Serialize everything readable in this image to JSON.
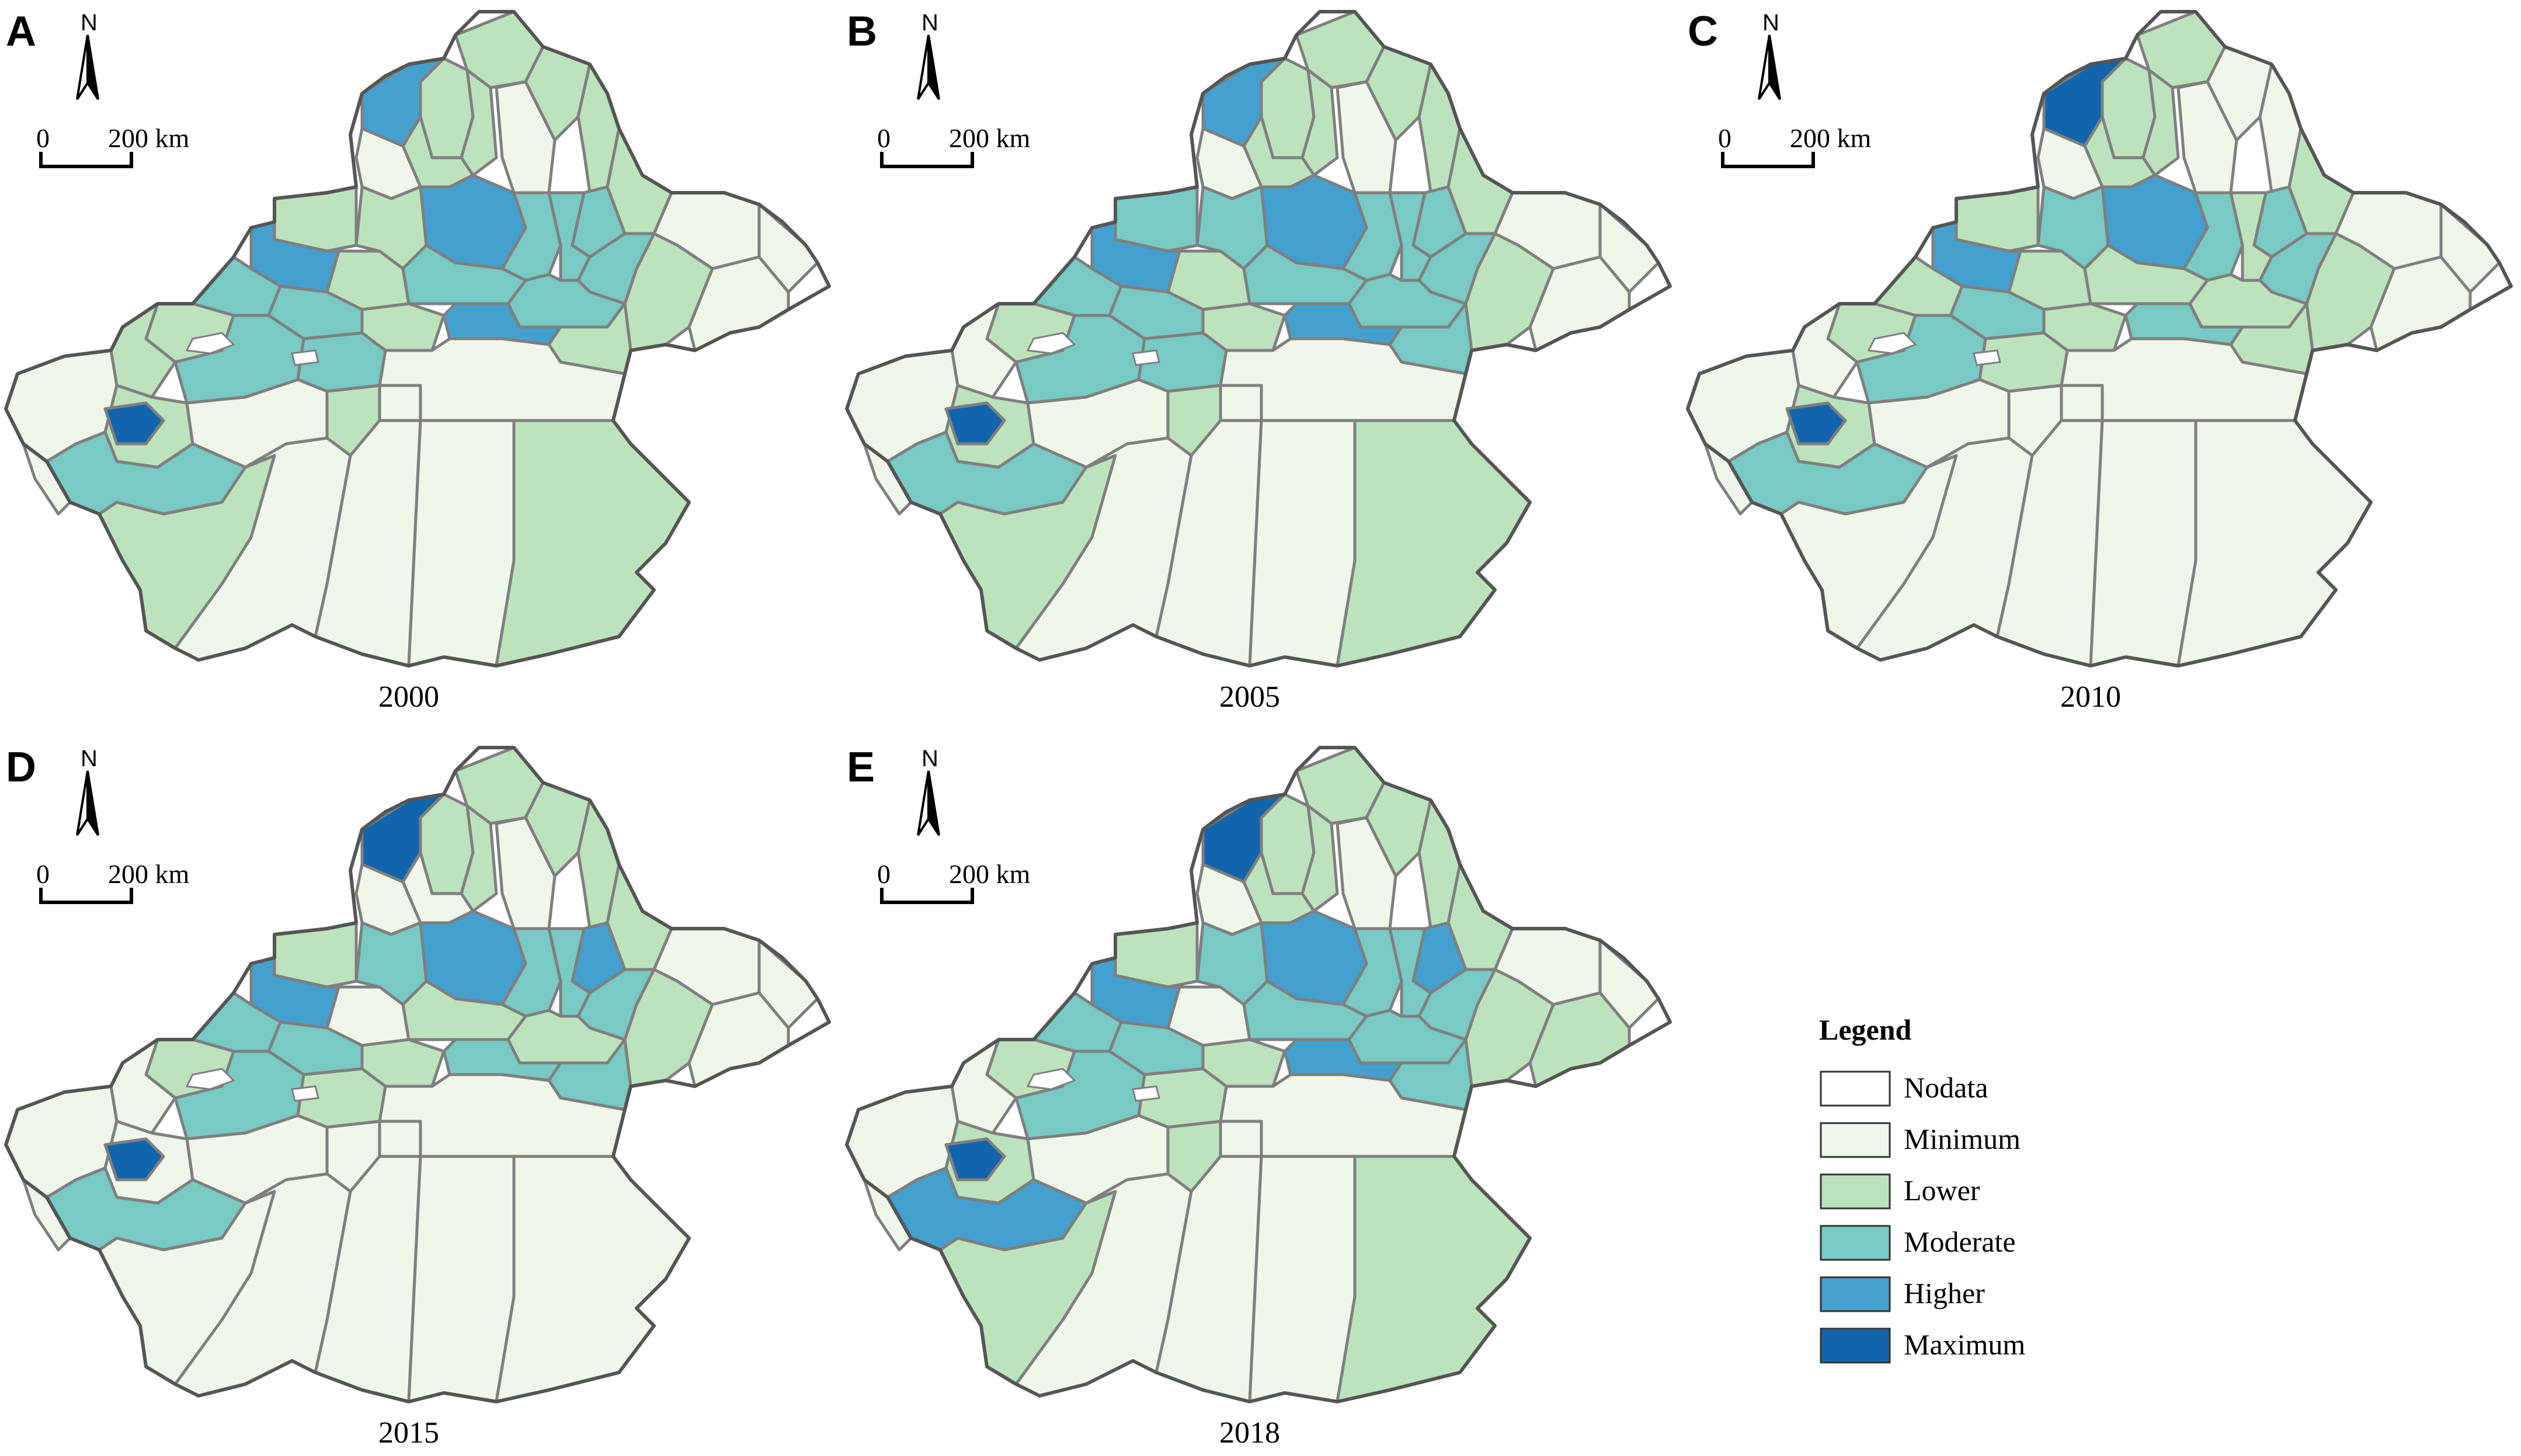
{
  "figure": {
    "panels": [
      {
        "letter": "A",
        "year": "2000",
        "north": "N",
        "scale_zero": "0",
        "scale_max": "200 km",
        "classes": [
          "lower",
          "lower",
          "lower",
          "lower",
          "lower",
          "minimum",
          "lower",
          "minimum",
          "higher",
          "lower",
          "minimum",
          "minimum",
          "moderate",
          "higher",
          "moderate",
          "moderate",
          "lower",
          "moderate",
          "lower",
          "lower",
          "minimum",
          "lower",
          "higher",
          "moderate",
          "moderate",
          "moderate",
          "moderate",
          "lower",
          "higher",
          "lower",
          "lower",
          "minimum",
          "lower",
          "moderate",
          "moderate",
          "minimum",
          "lower",
          "minimum",
          "moderate",
          "maximum",
          "lower",
          "lower",
          "minimum",
          "minimum",
          "minimum",
          "lower",
          "minimum",
          "minimum"
        ]
      },
      {
        "letter": "B",
        "year": "2005",
        "north": "N",
        "scale_zero": "0",
        "scale_max": "200 km",
        "classes": [
          "lower",
          "lower",
          "lower",
          "lower",
          "lower",
          "minimum",
          "lower",
          "minimum",
          "higher",
          "lower",
          "minimum",
          "minimum",
          "moderate",
          "higher",
          "moderate",
          "moderate",
          "lower",
          "moderate",
          "moderate",
          "moderate",
          "minimum",
          "lower",
          "higher",
          "moderate",
          "moderate",
          "moderate",
          "moderate",
          "lower",
          "higher",
          "moderate",
          "lower",
          "minimum",
          "minimum",
          "moderate",
          "moderate",
          "minimum",
          "lower",
          "minimum",
          "moderate",
          "maximum",
          "lower",
          "lower",
          "minimum",
          "minimum",
          "minimum",
          "lower",
          "minimum",
          "minimum"
        ]
      },
      {
        "letter": "C",
        "year": "2010",
        "north": "N",
        "scale_zero": "0",
        "scale_max": "200 km",
        "classes": [
          "lower",
          "lower",
          "lower",
          "minimum",
          "minimum",
          "minimum",
          "lower",
          "minimum",
          "maximum",
          "lower",
          "minimum",
          "minimum",
          "moderate",
          "higher",
          "moderate",
          "lower",
          "lower",
          "moderate",
          "moderate",
          "lower",
          "minimum",
          "lower",
          "higher",
          "lower",
          "lower",
          "lower",
          "moderate",
          "lower",
          "moderate",
          "lower",
          "lower",
          "minimum",
          "minimum",
          "moderate",
          "lower",
          "minimum",
          "lower",
          "minimum",
          "moderate",
          "maximum",
          "minimum",
          "minimum",
          "minimum",
          "minimum",
          "minimum",
          "minimum",
          "minimum",
          "minimum"
        ]
      },
      {
        "letter": "D",
        "year": "2015",
        "north": "N",
        "scale_zero": "0",
        "scale_max": "200 km",
        "classes": [
          "lower",
          "lower",
          "lower",
          "lower",
          "lower",
          "minimum",
          "minimum",
          "minimum",
          "maximum",
          "lower",
          "minimum",
          "minimum",
          "higher",
          "higher",
          "moderate",
          "moderate",
          "lower",
          "moderate",
          "moderate",
          "lower",
          "minimum",
          "minimum",
          "higher",
          "lower",
          "lower",
          "moderate",
          "moderate",
          "lower",
          "moderate",
          "moderate",
          "lower",
          "minimum",
          "minimum",
          "moderate",
          "lower",
          "minimum",
          "minimum",
          "minimum",
          "moderate",
          "maximum",
          "minimum",
          "minimum",
          "minimum",
          "minimum",
          "minimum",
          "minimum",
          "minimum",
          "minimum"
        ]
      },
      {
        "letter": "E",
        "year": "2018",
        "north": "N",
        "scale_zero": "0",
        "scale_max": "200 km",
        "classes": [
          "lower",
          "lower",
          "lower",
          "lower",
          "lower",
          "minimum",
          "lower",
          "minimum",
          "maximum",
          "lower",
          "minimum",
          "minimum",
          "higher",
          "higher",
          "moderate",
          "moderate",
          "lower",
          "moderate",
          "moderate",
          "lower",
          "lower",
          "minimum",
          "higher",
          "moderate",
          "moderate",
          "moderate",
          "moderate",
          "lower",
          "higher",
          "moderate",
          "lower",
          "minimum",
          "minimum",
          "moderate",
          "lower",
          "minimum",
          "lower",
          "minimum",
          "higher",
          "maximum",
          "lower",
          "lower",
          "minimum",
          "minimum",
          "minimum",
          "lower",
          "minimum",
          "minimum"
        ]
      }
    ]
  },
  "legend": {
    "title": "Legend",
    "items": [
      {
        "label": "Nodata",
        "class": "nodata",
        "color": "#ffffff"
      },
      {
        "label": "Minimum",
        "class": "minimum",
        "color": "#eef7e9"
      },
      {
        "label": "Lower",
        "class": "lower",
        "color": "#bde3bc"
      },
      {
        "label": "Moderate",
        "class": "moderate",
        "color": "#79c9c4"
      },
      {
        "label": "Higher",
        "class": "higher",
        "color": "#44a0cf"
      },
      {
        "label": "Maximum",
        "class": "maximum",
        "color": "#1265ac"
      }
    ]
  }
}
